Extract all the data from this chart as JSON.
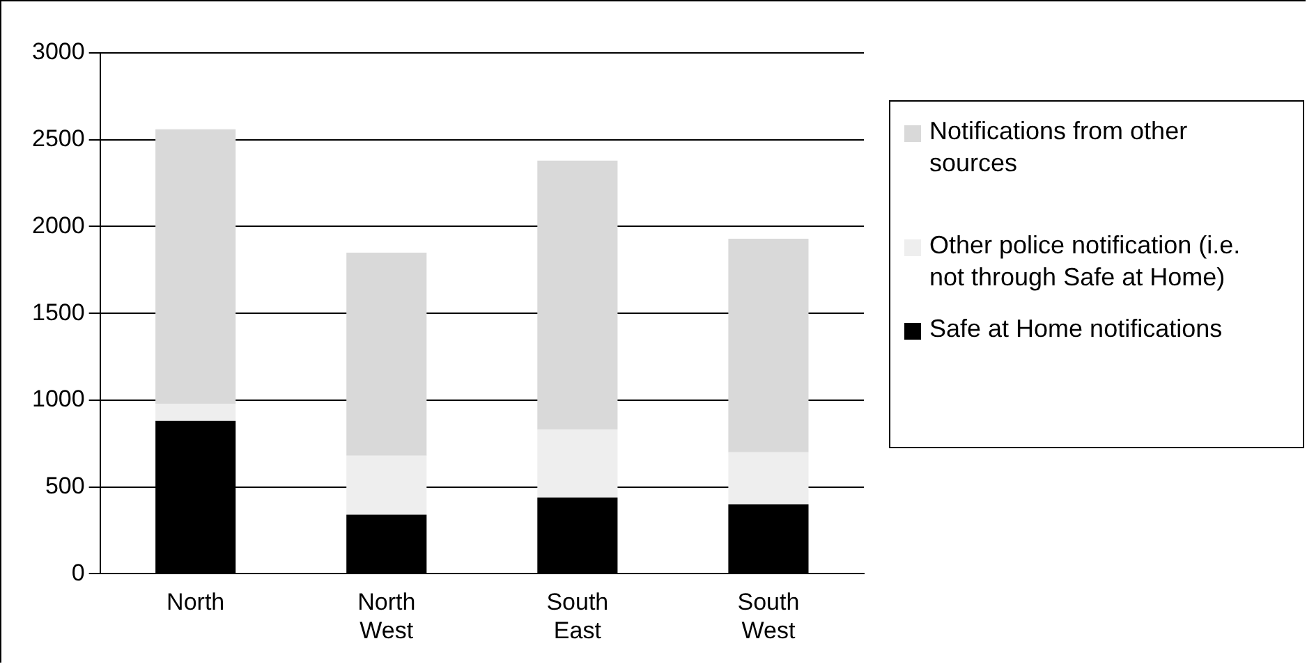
{
  "chart_data": {
    "type": "bar",
    "stacked": true,
    "categories": [
      "North",
      "North West",
      "South East",
      "South West"
    ],
    "series": [
      {
        "name": "Safe at Home notifications",
        "color": "#000000",
        "values": [
          880,
          340,
          440,
          400
        ]
      },
      {
        "name": "Other police notification (i.e. not through Safe at Home)",
        "color": "#eeeeee",
        "values": [
          100,
          340,
          390,
          300
        ]
      },
      {
        "name": "Notifications from other sources",
        "color": "#d9d9d9",
        "values": [
          1580,
          1170,
          1550,
          1230
        ]
      }
    ],
    "ylim": [
      0,
      3000
    ],
    "yticks": [
      0,
      500,
      1000,
      1500,
      2000,
      2500,
      3000
    ],
    "grid": "y",
    "legend": "right"
  }
}
